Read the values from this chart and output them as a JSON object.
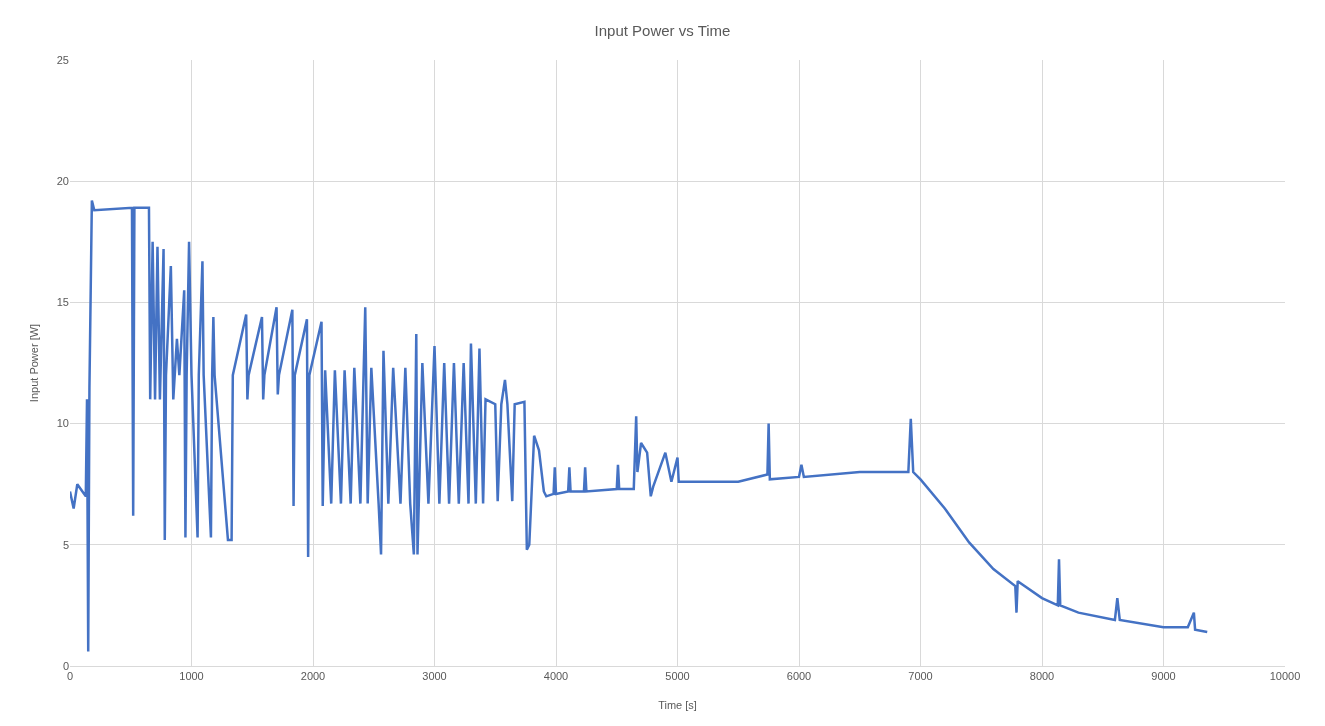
{
  "chart_data": {
    "type": "line",
    "title": "Input Power vs Time",
    "xlabel": "Time [s]",
    "ylabel": "Input Power [W]",
    "x": [
      0,
      30,
      60,
      130,
      140,
      150,
      160,
      180,
      200,
      510,
      520,
      530,
      650,
      660,
      680,
      700,
      720,
      740,
      770,
      780,
      790,
      830,
      850,
      880,
      900,
      940,
      950,
      960,
      980,
      1000,
      1050,
      1060,
      1090,
      1100,
      1160,
      1170,
      1180,
      1190,
      1300,
      1330,
      1340,
      1450,
      1460,
      1470,
      1580,
      1590,
      1600,
      1700,
      1710,
      1720,
      1830,
      1840,
      1850,
      1950,
      1960,
      1970,
      2070,
      2080,
      2100,
      2150,
      2180,
      2230,
      2260,
      2310,
      2340,
      2390,
      2430,
      2450,
      2480,
      2540,
      2560,
      2580,
      2620,
      2660,
      2720,
      2760,
      2800,
      2830,
      2850,
      2860,
      2900,
      2950,
      3000,
      3040,
      3080,
      3120,
      3160,
      3200,
      3240,
      3280,
      3300,
      3340,
      3370,
      3400,
      3420,
      3500,
      3520,
      3550,
      3580,
      3600,
      3640,
      3660,
      3740,
      3760,
      3780,
      3820,
      3860,
      3900,
      3920,
      3980,
      3990,
      4000,
      4100,
      4110,
      4120,
      4230,
      4240,
      4250,
      4500,
      4510,
      4520,
      4640,
      4660,
      4670,
      4700,
      4750,
      4780,
      4800,
      4900,
      4950,
      5000,
      5010,
      5500,
      5740,
      5750,
      5760,
      6000,
      6020,
      6040,
      6500,
      6900,
      6920,
      6940,
      7000,
      7200,
      7400,
      7600,
      7780,
      7790,
      7800,
      8000,
      8130,
      8140,
      8150,
      8300,
      8600,
      8620,
      8640,
      9000,
      9200,
      9250,
      9260,
      9360
    ],
    "series": [
      {
        "color": "#4472c4",
        "values": [
          7.2,
          6.5,
          7.5,
          7.0,
          11.0,
          0.6,
          11.5,
          19.2,
          18.8,
          18.9,
          6.2,
          18.9,
          18.9,
          11,
          17.5,
          11,
          17.3,
          11,
          17.2,
          5.2,
          12,
          16.5,
          11,
          13.5,
          12,
          15.5,
          5.3,
          12,
          17.5,
          12,
          5.3,
          12,
          16.7,
          12,
          5.3,
          12,
          14.4,
          12,
          5.2,
          5.2,
          12,
          14.5,
          11,
          12,
          14.4,
          11,
          12,
          14.8,
          11.2,
          12,
          14.7,
          6.6,
          12,
          14.3,
          4.5,
          12,
          14.2,
          6.6,
          12.2,
          6.7,
          12.2,
          6.7,
          12.2,
          6.7,
          12.3,
          6.7,
          14.8,
          6.7,
          12.3,
          6.7,
          4.6,
          13.0,
          6.7,
          12.3,
          6.7,
          12.3,
          6.7,
          4.6,
          13.7,
          4.6,
          12.5,
          6.7,
          13.2,
          6.7,
          12.5,
          6.7,
          12.5,
          6.7,
          12.5,
          6.7,
          13.3,
          6.7,
          13.1,
          6.7,
          11.0,
          10.8,
          6.8,
          10.8,
          11.8,
          10.8,
          6.8,
          10.8,
          10.9,
          4.8,
          5.0,
          9.5,
          8.9,
          7.2,
          7.0,
          7.1,
          8.2,
          7.1,
          7.2,
          8.2,
          7.2,
          7.2,
          8.2,
          7.2,
          7.3,
          8.3,
          7.3,
          7.3,
          10.3,
          8.0,
          9.2,
          8.8,
          7.0,
          7.4,
          8.8,
          7.6,
          8.6,
          7.6,
          7.6,
          7.9,
          10.0,
          7.7,
          7.8,
          8.3,
          7.8,
          8.0,
          8.0,
          10.2,
          8.0,
          7.7,
          6.5,
          5.1,
          4.0,
          3.3,
          2.2,
          3.5,
          2.8,
          2.5,
          4.4,
          2.5,
          2.2,
          1.9,
          2.8,
          1.9,
          1.6,
          1.6,
          2.2,
          1.5,
          1.4
        ]
      }
    ],
    "xlim": [
      0,
      10000
    ],
    "xticks": [
      0,
      1000,
      2000,
      3000,
      4000,
      5000,
      6000,
      7000,
      8000,
      9000,
      10000
    ],
    "ylim": [
      0,
      25
    ],
    "yticks": [
      0,
      5,
      10,
      15,
      20,
      25
    ],
    "grid": true,
    "marker": "none",
    "line_style": "solid"
  }
}
